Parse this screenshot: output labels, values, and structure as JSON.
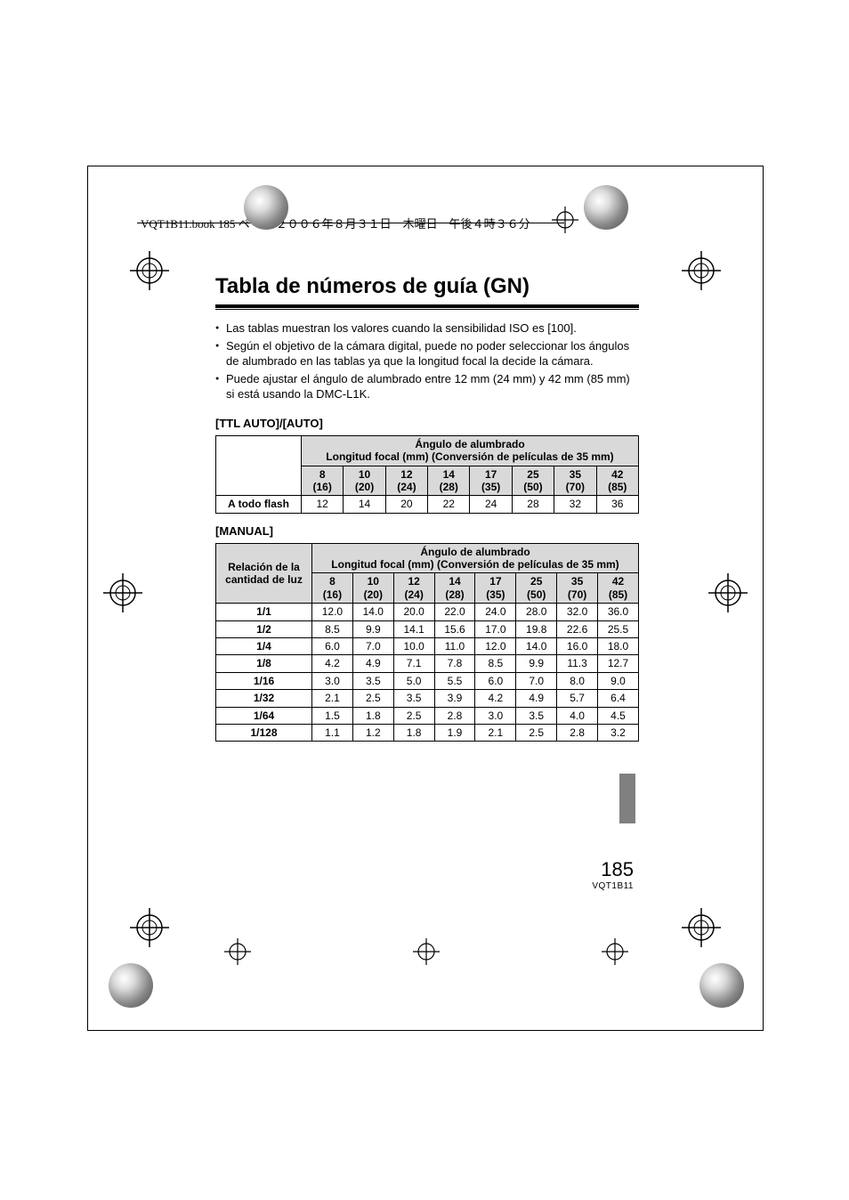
{
  "header_line": "VQT1B11.book  185 ページ  ２００６年８月３１日　木曜日　午後４時３６分",
  "title": "Tabla de números de guía (GN)",
  "bullets": [
    "Las tablas muestran los valores cuando la sensibilidad ISO es [100].",
    "Según el objetivo de la cámara digital, puede no poder seleccionar los ángulos de alumbrado en las tablas ya que la longitud focal la decide la cámara.",
    "Puede ajustar el ángulo de alumbrado entre 12 mm (24 mm) y 42 mm (85 mm) si está usando la DMC-L1K."
  ],
  "section1": {
    "heading": "[TTL AUTO]/[AUTO]",
    "group_header_line1": "Ángulo de alumbrado",
    "group_header_line2": "Longitud focal (mm) (Conversión de películas de 35 mm)",
    "col_tops": [
      "8",
      "10",
      "12",
      "14",
      "17",
      "25",
      "35",
      "42"
    ],
    "col_bottoms": [
      "(16)",
      "(20)",
      "(24)",
      "(28)",
      "(35)",
      "(50)",
      "(70)",
      "(85)"
    ],
    "row_label": "A todo flash",
    "row_values": [
      "12",
      "14",
      "20",
      "22",
      "24",
      "28",
      "32",
      "36"
    ]
  },
  "section2": {
    "heading": "[MANUAL]",
    "corner_line1": "Relación de la",
    "corner_line2": "cantidad de luz",
    "group_header_line1": "Ángulo de alumbrado",
    "group_header_line2": "Longitud focal (mm) (Conversión de películas de 35 mm)",
    "col_tops": [
      "8",
      "10",
      "12",
      "14",
      "17",
      "25",
      "35",
      "42"
    ],
    "col_bottoms": [
      "(16)",
      "(20)",
      "(24)",
      "(28)",
      "(35)",
      "(50)",
      "(70)",
      "(85)"
    ],
    "rows": [
      {
        "label": "1/1",
        "v": [
          "12.0",
          "14.0",
          "20.0",
          "22.0",
          "24.0",
          "28.0",
          "32.0",
          "36.0"
        ]
      },
      {
        "label": "1/2",
        "v": [
          "8.5",
          "9.9",
          "14.1",
          "15.6",
          "17.0",
          "19.8",
          "22.6",
          "25.5"
        ]
      },
      {
        "label": "1/4",
        "v": [
          "6.0",
          "7.0",
          "10.0",
          "11.0",
          "12.0",
          "14.0",
          "16.0",
          "18.0"
        ]
      },
      {
        "label": "1/8",
        "v": [
          "4.2",
          "4.9",
          "7.1",
          "7.8",
          "8.5",
          "9.9",
          "11.3",
          "12.7"
        ]
      },
      {
        "label": "1/16",
        "v": [
          "3.0",
          "3.5",
          "5.0",
          "5.5",
          "6.0",
          "7.0",
          "8.0",
          "9.0"
        ]
      },
      {
        "label": "1/32",
        "v": [
          "2.1",
          "2.5",
          "3.5",
          "3.9",
          "4.2",
          "4.9",
          "5.7",
          "6.4"
        ]
      },
      {
        "label": "1/64",
        "v": [
          "1.5",
          "1.8",
          "2.5",
          "2.8",
          "3.0",
          "3.5",
          "4.0",
          "4.5"
        ]
      },
      {
        "label": "1/128",
        "v": [
          "1.1",
          "1.2",
          "1.8",
          "1.9",
          "2.1",
          "2.5",
          "2.8",
          "3.2"
        ]
      }
    ]
  },
  "page_number": "185",
  "doc_id": "VQT1B11",
  "colors": {
    "frame": "#000000",
    "th_bg": "#d9d9d9",
    "tab_bg": "#808080"
  }
}
